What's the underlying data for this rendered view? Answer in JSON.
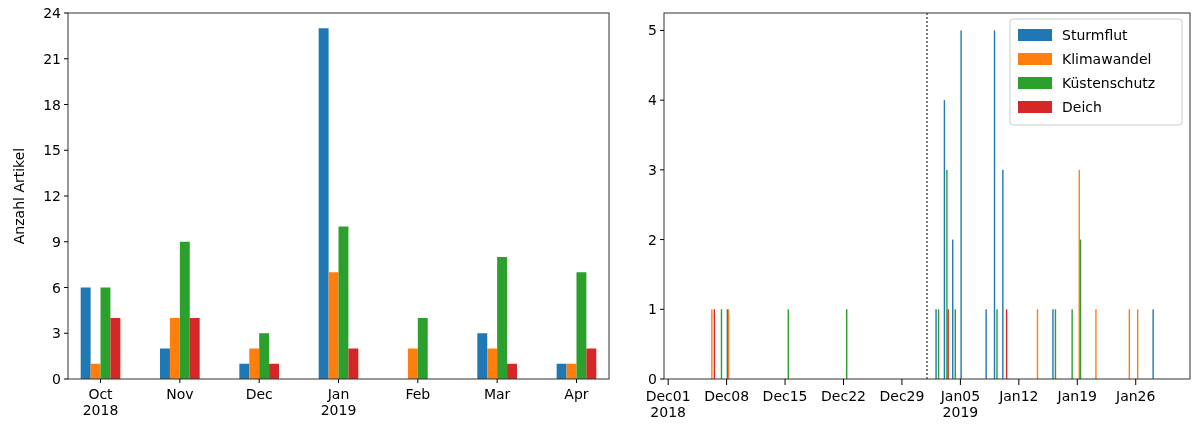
{
  "chart_data": [
    {
      "type": "bar",
      "ylabel": "Anzahl Artikel",
      "categories": [
        "Oct\n2018",
        "Nov",
        "Dec",
        "Jan\n2019",
        "Feb",
        "Mar",
        "Apr"
      ],
      "ylim": [
        0,
        24
      ],
      "yticks": [
        0,
        3,
        6,
        9,
        12,
        15,
        18,
        21,
        24
      ],
      "series": [
        {
          "color": "#1f77b4",
          "values": [
            6,
            2,
            1,
            23,
            0,
            3,
            1
          ]
        },
        {
          "color": "#ff7f0e",
          "values": [
            1,
            4,
            2,
            7,
            2,
            2,
            1
          ]
        },
        {
          "color": "#2ca02c",
          "values": [
            6,
            9,
            3,
            10,
            4,
            8,
            7
          ]
        },
        {
          "color": "#d62728",
          "values": [
            4,
            4,
            1,
            2,
            0,
            1,
            2
          ]
        }
      ]
    },
    {
      "type": "bar",
      "xlim": [
        "2018-11-30T12:00",
        "2019-02-01T12:00"
      ],
      "ylim": [
        0,
        5.25
      ],
      "yticks": [
        0,
        1,
        2,
        3,
        4,
        5
      ],
      "xticks": [
        {
          "value": "2018-12-01",
          "label": "Dec01\n2018"
        },
        {
          "value": "2018-12-08",
          "label": "Dec08"
        },
        {
          "value": "2018-12-15",
          "label": "Dec15"
        },
        {
          "value": "2018-12-22",
          "label": "Dec22"
        },
        {
          "value": "2018-12-29",
          "label": "Dec29"
        },
        {
          "value": "2019-01-05",
          "label": "Jan05\n2019"
        },
        {
          "value": "2019-01-12",
          "label": "Jan12"
        },
        {
          "value": "2019-01-19",
          "label": "Jan19"
        },
        {
          "value": "2019-01-26",
          "label": "Jan26"
        }
      ],
      "legend": "top right",
      "ref_lines": [
        {
          "axis": "x",
          "value": "2019-01-01",
          "color": "#000000",
          "line_style": "dotted"
        }
      ],
      "series": [
        {
          "name": "Sturmflut",
          "color": "#1f77b4",
          "x": [
            "2018-12-08",
            "2019-01-02",
            "2019-01-03",
            "2019-01-04",
            "2019-01-05",
            "2019-01-08",
            "2019-01-09",
            "2019-01-10",
            "2019-01-16",
            "2019-01-28"
          ],
          "values": [
            1,
            1,
            4,
            2,
            5,
            1,
            5,
            3,
            1,
            1
          ]
        },
        {
          "name": "Klimawandel",
          "color": "#ff7f0e",
          "x": [
            "2018-12-06",
            "2018-12-08",
            "2019-01-14",
            "2019-01-19",
            "2019-01-21",
            "2019-01-25",
            "2019-01-26"
          ],
          "values": [
            1,
            1,
            1,
            3,
            1,
            1,
            1
          ]
        },
        {
          "name": "Küstenschutz",
          "color": "#2ca02c",
          "x": [
            "2018-12-07",
            "2018-12-15",
            "2018-12-22",
            "2019-01-02",
            "2019-01-03",
            "2019-01-04",
            "2019-01-09",
            "2019-01-16",
            "2019-01-18",
            "2019-01-19"
          ],
          "values": [
            1,
            1,
            1,
            1,
            3,
            1,
            1,
            1,
            1,
            2
          ]
        },
        {
          "name": "Deich",
          "color": "#d62728",
          "x": [
            "2018-12-06",
            "2019-01-03",
            "2019-01-10"
          ],
          "values": [
            1,
            1,
            1
          ]
        }
      ]
    }
  ]
}
